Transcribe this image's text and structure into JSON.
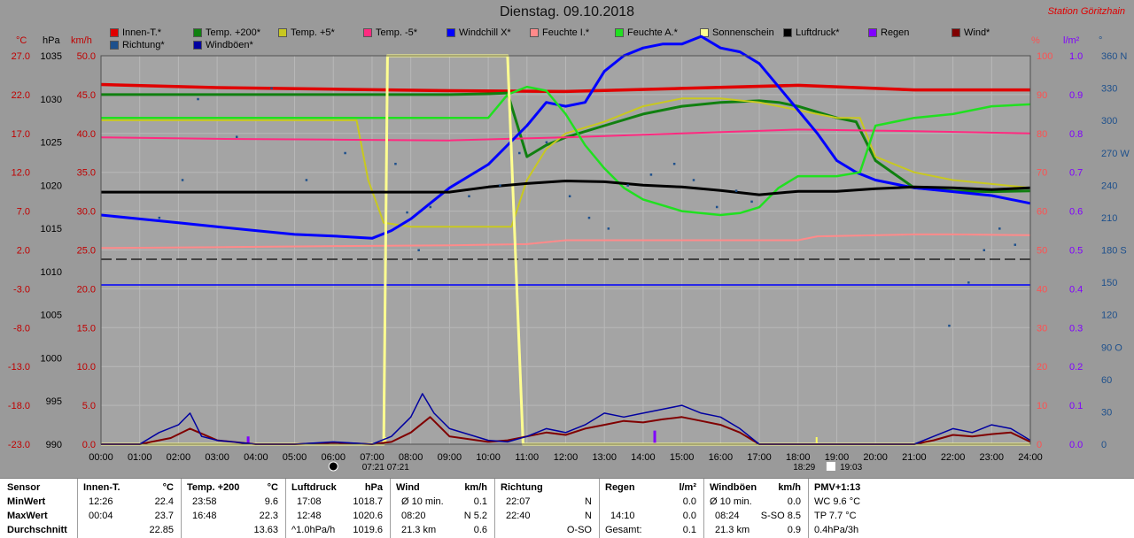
{
  "header": {
    "title": "Dienstag. 09.10.2018",
    "station": "Station Göritzhain"
  },
  "legend": [
    {
      "label": "Innen-T.*",
      "color": "#e00000"
    },
    {
      "label": "Temp. +200*",
      "color": "#108010"
    },
    {
      "label": "Temp. +5*",
      "color": "#c8c820"
    },
    {
      "label": "Temp. -5*",
      "color": "#ff2a80"
    },
    {
      "label": "Windchill X*",
      "color": "#0000ff"
    },
    {
      "label": "Feuchte I.*",
      "color": "#ff8a8a"
    },
    {
      "label": "Feuchte A.*",
      "color": "#20e020"
    },
    {
      "label": "Sonnenschein",
      "color": "#ffff90"
    },
    {
      "label": "Luftdruck*",
      "color": "#000000"
    },
    {
      "label": "Regen",
      "color": "#8000ff"
    },
    {
      "label": "Wind*",
      "color": "#800000"
    },
    {
      "label": "Richtung*",
      "color": "#1e508c"
    },
    {
      "label": "Windböen*",
      "color": "#0000a0"
    }
  ],
  "axes": {
    "unit_temp": "°C",
    "unit_hpa": "hPa",
    "unit_kmh": "km/h",
    "unit_pct": "%",
    "unit_rain": "l/m²",
    "unit_deg": "°",
    "temp_ticks": [
      "27.0",
      "22.0",
      "17.0",
      "12.0",
      "7.0",
      "2.0",
      "-3.0",
      "-8.0",
      "-13.0",
      "-18.0",
      "-23.0"
    ],
    "hpa_ticks": [
      "1035",
      "1030",
      "1025",
      "1020",
      "1015",
      "1010",
      "1005",
      "1000",
      "995",
      "990"
    ],
    "kmh_ticks": [
      "50.0",
      "45.0",
      "40.0",
      "35.0",
      "30.0",
      "25.0",
      "20.0",
      "15.0",
      "10.0",
      "5.0",
      "0.0"
    ],
    "pct_ticks": [
      "100",
      "90",
      "80",
      "70",
      "60",
      "50",
      "40",
      "30",
      "20",
      "10",
      "0"
    ],
    "rain_ticks": [
      "1.0",
      "0.9",
      "0.8",
      "0.7",
      "0.6",
      "0.5",
      "0.4",
      "0.3",
      "0.2",
      "0.1",
      "0.0"
    ],
    "deg_ticks": [
      "360 N",
      "330",
      "300",
      "270 W",
      "240",
      "210",
      "180 S",
      "150",
      "120",
      "90 O",
      "60",
      "30",
      "0"
    ],
    "time_ticks": [
      "00:00",
      "01:00",
      "02:00",
      "03:00",
      "04:00",
      "05:00",
      "06:00",
      "07:00",
      "08:00",
      "09:00",
      "10:00",
      "11:00",
      "12:00",
      "13:00",
      "14:00",
      "15:00",
      "16:00",
      "17:00",
      "18:00",
      "19:00",
      "20:00",
      "21:00",
      "22:00",
      "23:00",
      "24:00"
    ],
    "sun_events": [
      "07:21",
      "07:21",
      "18:29",
      "19:03"
    ]
  },
  "chart_data": {
    "type": "line",
    "title": "Dienstag. 09.10.2018",
    "x_unit": "hour",
    "xlim": [
      0,
      24
    ],
    "temp_ylim": [
      -23,
      27
    ],
    "hpa_ylim": [
      990,
      1035
    ],
    "kmh_ylim": [
      0,
      50
    ],
    "pct_ylim": [
      0,
      100
    ],
    "rain_ylim": [
      0,
      1
    ],
    "deg_ylim": [
      0,
      360
    ],
    "series": [
      {
        "name": "Innen-T.*",
        "axis": "temp",
        "color": "#e00000",
        "width": 3.5,
        "x": [
          0,
          3,
          6,
          9,
          12,
          15,
          18,
          21,
          24
        ],
        "y": [
          23.3,
          22.9,
          22.7,
          22.5,
          22.4,
          22.8,
          23.2,
          22.6,
          22.6
        ]
      },
      {
        "name": "Temp. +200*",
        "axis": "temp",
        "color": "#108010",
        "width": 3,
        "x": [
          0,
          3,
          6,
          7,
          8,
          9,
          10,
          10.5,
          11,
          11.5,
          12,
          13,
          14,
          15,
          16,
          17,
          17.5,
          18,
          19,
          19.5,
          20,
          21,
          22,
          23,
          24
        ],
        "y": [
          22.0,
          22.0,
          22.0,
          22.0,
          22.0,
          22.0,
          22.1,
          22.2,
          14.0,
          15.5,
          16.5,
          18.0,
          19.5,
          20.5,
          21.0,
          21.2,
          21.0,
          20.5,
          19.0,
          18.5,
          13.5,
          10.0,
          9.6,
          9.5,
          9.6
        ]
      },
      {
        "name": "Temp. +5*",
        "axis": "temp",
        "color": "#c8c820",
        "width": 2,
        "x": [
          0,
          3,
          6,
          6.6,
          6.9,
          7.3,
          8,
          9,
          10,
          10.6,
          11,
          11.5,
          12,
          13,
          14,
          15,
          16,
          17,
          18,
          19,
          19.6,
          20,
          21,
          22,
          23,
          24
        ],
        "y": [
          18.7,
          18.7,
          18.7,
          18.7,
          11.0,
          5.5,
          5.0,
          5.0,
          5.0,
          5.0,
          11.0,
          15.0,
          17.0,
          18.5,
          20.5,
          21.5,
          21.5,
          21.0,
          20.0,
          19.0,
          19.0,
          14.0,
          12.0,
          11.0,
          10.5,
          10.0
        ]
      },
      {
        "name": "Temp. -5*",
        "axis": "temp",
        "color": "#ff2a80",
        "width": 2,
        "x": [
          0,
          3,
          6,
          9,
          12,
          15,
          18,
          21,
          24
        ],
        "y": [
          16.5,
          16.3,
          16.2,
          16.1,
          16.5,
          17.0,
          17.5,
          17.3,
          17.0
        ]
      },
      {
        "name": "Windchill X*",
        "axis": "temp",
        "color": "#0000ff",
        "width": 3,
        "x": [
          0,
          1,
          2,
          3,
          4,
          5,
          6,
          7,
          7.5,
          8,
          8.5,
          9,
          9.5,
          10,
          10.5,
          11,
          11.5,
          12,
          12.5,
          13,
          13.5,
          14,
          14.5,
          15,
          15.5,
          16,
          16.5,
          17,
          17.5,
          18,
          18.5,
          19,
          19.5,
          20,
          21,
          22,
          23,
          24
        ],
        "y": [
          6.5,
          6.0,
          5.5,
          5.0,
          4.5,
          4.0,
          3.8,
          3.5,
          4.5,
          6.0,
          8.0,
          10.0,
          11.5,
          13.0,
          15.5,
          18.0,
          21.0,
          20.5,
          21.0,
          25.0,
          27.0,
          28.0,
          28.5,
          28.5,
          29.5,
          28.0,
          27.5,
          26.0,
          23.0,
          20.0,
          17.0,
          13.5,
          12.0,
          11.0,
          10.0,
          9.5,
          9.0,
          8.0
        ]
      },
      {
        "name": "Feuchte I.*",
        "axis": "pct",
        "color": "#ff8a8a",
        "width": 2,
        "x": [
          0,
          3,
          6,
          9,
          11,
          12,
          14,
          16,
          18,
          18.5,
          21,
          22,
          24
        ],
        "y": [
          50.5,
          50.7,
          51.0,
          51.2,
          51.5,
          52.5,
          52.5,
          52.5,
          52.5,
          53.5,
          54.0,
          54.0,
          53.8
        ]
      },
      {
        "name": "Feuchte A.*",
        "axis": "pct",
        "color": "#20e020",
        "width": 2.5,
        "x": [
          0,
          3,
          6,
          9,
          10,
          10.5,
          11,
          11.5,
          12,
          12.5,
          13,
          13.5,
          14,
          15,
          16,
          16.5,
          17,
          17.5,
          18,
          19,
          19.6,
          20,
          21,
          22,
          23,
          24
        ],
        "y": [
          84.0,
          84.0,
          84.0,
          84.0,
          84.0,
          90.0,
          92.0,
          91.0,
          85.0,
          77.0,
          71.0,
          66.0,
          63.0,
          60.0,
          59.0,
          59.5,
          61.0,
          66.0,
          69.0,
          69.0,
          70.0,
          82.0,
          84.0,
          85.0,
          87.0,
          87.5
        ]
      },
      {
        "name": "Sonnenschein",
        "axis": "pct",
        "color": "#ffff90",
        "width": 3,
        "x": [
          0,
          7.3,
          7.4,
          10.5,
          10.9,
          24
        ],
        "y": [
          0,
          0,
          100,
          100,
          0,
          0
        ]
      },
      {
        "name": "Luftdruck*",
        "axis": "hpa",
        "color": "#000000",
        "width": 3,
        "x": [
          0,
          3,
          6,
          9,
          10,
          11,
          12,
          13,
          14,
          15,
          16,
          17,
          18,
          19,
          20,
          21,
          22,
          23,
          24
        ],
        "y": [
          1019.2,
          1019.2,
          1019.2,
          1019.2,
          1019.8,
          1020.2,
          1020.5,
          1020.4,
          1020.0,
          1019.8,
          1019.4,
          1018.9,
          1019.3,
          1019.3,
          1019.6,
          1019.8,
          1019.7,
          1019.5,
          1019.7
        ]
      },
      {
        "name": "Wind*",
        "axis": "kmh",
        "color": "#800000",
        "width": 2,
        "x": [
          0,
          1,
          1.8,
          2.3,
          3,
          4,
          5,
          6,
          7,
          7.5,
          8,
          8.5,
          9,
          10,
          10.5,
          11,
          11.5,
          12,
          12.5,
          13,
          13.5,
          14,
          14.5,
          15,
          15.5,
          16,
          16.5,
          17,
          20,
          21,
          21.5,
          22,
          22.5,
          23,
          23.5,
          24
        ],
        "y": [
          0,
          0,
          0.8,
          2.0,
          0.5,
          0,
          0,
          0.2,
          0,
          0.3,
          1.5,
          3.5,
          1.0,
          0.3,
          0.5,
          1.0,
          1.5,
          1.2,
          2.0,
          2.5,
          3.0,
          2.8,
          3.2,
          3.5,
          3.0,
          2.5,
          1.5,
          0,
          0,
          0,
          0.5,
          1.2,
          1.0,
          1.3,
          1.5,
          0.3
        ]
      },
      {
        "name": "Windböen*",
        "axis": "kmh",
        "color": "#0000a0",
        "width": 1.5,
        "x": [
          0,
          1,
          1.5,
          2,
          2.3,
          2.6,
          3,
          4,
          5,
          6,
          7,
          7.5,
          8,
          8.3,
          8.6,
          9,
          10,
          10.5,
          11,
          11.5,
          12,
          12.5,
          13,
          13.5,
          14,
          14.5,
          15,
          15.5,
          16,
          16.5,
          17,
          20,
          21,
          21.5,
          22,
          22.5,
          23,
          23.5,
          24
        ],
        "y": [
          0,
          0,
          1.5,
          2.5,
          4.0,
          1.0,
          0.5,
          0,
          0,
          0.3,
          0,
          1.0,
          3.5,
          6.5,
          4.0,
          2.0,
          0.5,
          0.3,
          1.0,
          2.0,
          1.5,
          2.5,
          4.0,
          3.5,
          4.0,
          4.5,
          5.0,
          4.0,
          3.5,
          2.0,
          0,
          0,
          0,
          1.0,
          2.0,
          1.5,
          2.5,
          2.0,
          0.5
        ]
      },
      {
        "name": "Richtung*",
        "axis": "deg",
        "color": "#1e508c",
        "width": 0,
        "scatter": true,
        "x": [
          1.5,
          2.1,
          2.5,
          3.5,
          4.4,
          5.3,
          6.3,
          7.6,
          7.9,
          8.2,
          8.5,
          9.5,
          10.3,
          10.8,
          11.5,
          12.1,
          12.6,
          13.1,
          13.6,
          14.2,
          14.8,
          15.3,
          15.9,
          16.4,
          16.8,
          21.9,
          22.4,
          22.8,
          23.2,
          23.6
        ],
        "y": [
          210,
          245,
          320,
          285,
          330,
          245,
          270,
          260,
          215,
          180,
          220,
          230,
          240,
          270,
          280,
          230,
          210,
          200,
          240,
          250,
          260,
          245,
          220,
          235,
          225,
          110,
          150,
          180,
          200,
          185
        ]
      }
    ],
    "reference_lines": [
      {
        "axis": "temp",
        "y": 0.8,
        "color": "#202020",
        "dash": "12,5"
      },
      {
        "axis": "temp",
        "y": -2.5,
        "color": "#0000ff",
        "dash": ""
      }
    ],
    "rain_bars": [
      {
        "x": 3.8,
        "y": 0.02
      },
      {
        "x": 14.3,
        "y": 0.035
      }
    ]
  },
  "stats": {
    "col1": {
      "h1": "Sensor",
      "r1": "MinWert",
      "r2": "MaxWert",
      "r3": "Durchschnitt"
    },
    "col2": {
      "title": "Innen-T.",
      "unit": "°C",
      "r1a": "12:26",
      "r1b": "22.4",
      "r2a": "00:04",
      "r2b": "23.7",
      "r3b": "22.85"
    },
    "col3": {
      "title": "Temp. +200",
      "unit": "°C",
      "r1a": "23:58",
      "r1b": "9.6",
      "r2a": "16:48",
      "r2b": "22.3",
      "r3b": "13.63"
    },
    "col4": {
      "title": "Luftdruck",
      "unit": "hPa",
      "r1a": "17:08",
      "r1b": "1018.7",
      "r2a": "12:48",
      "r2b": "1020.6",
      "r3a": "^1.0hPa/h",
      "r3b": "1019.6"
    },
    "col5": {
      "title": "Wind",
      "unit": "km/h",
      "r1a": "Ø 10 min.",
      "r1b": "0.1",
      "r2a": "08:20",
      "r2b": "N 5.2",
      "r3a": "21.3 km",
      "r3b": "0.6"
    },
    "col6": {
      "title": "Richtung",
      "r1a": "22:07",
      "r1b": "N",
      "r2a": "22:40",
      "r2b": "N",
      "r3b": "O-SO"
    },
    "col7": {
      "title": "Regen",
      "unit": "l/m²",
      "r1b": "0.0",
      "r2a": "14:10",
      "r2b": "0.0",
      "r3a": "Gesamt:",
      "r3b": "0.1"
    },
    "col8": {
      "title": "Windböen",
      "unit": "km/h",
      "r1a": "Ø 10 min.",
      "r1b": "0.0",
      "r2a": "08:24",
      "r2b": "S-SO 8.5",
      "r3a": "21.3 km",
      "r3b": "0.9"
    },
    "col9": {
      "title": "PMV+1:13",
      "r1a": "WC 9.6 °C",
      "r2a": "TP 7.7 °C",
      "r3a": "0.4hPa/3h"
    }
  }
}
